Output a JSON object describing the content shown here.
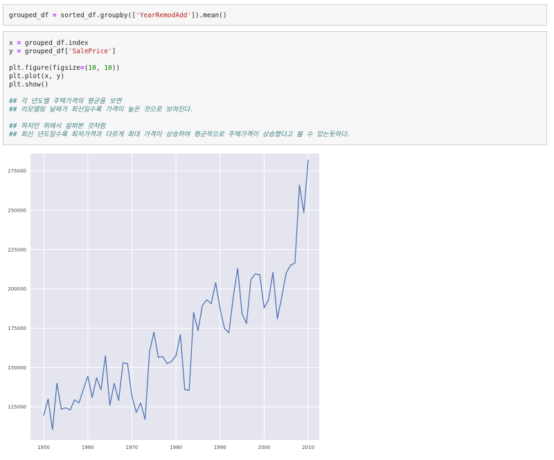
{
  "cell1": {
    "lines": [
      [
        {
          "t": "grouped_df ",
          "c": "plain"
        },
        {
          "t": "=",
          "c": "kw-eq"
        },
        {
          "t": " sorted_df.groupby([",
          "c": "plain"
        },
        {
          "t": "'YearRemodAdd'",
          "c": "str"
        },
        {
          "t": "]).mean()",
          "c": "plain"
        }
      ]
    ]
  },
  "cell2": {
    "lines": [
      [
        {
          "t": "x ",
          "c": "plain"
        },
        {
          "t": "=",
          "c": "kw-eq"
        },
        {
          "t": " grouped_df.index",
          "c": "plain"
        }
      ],
      [
        {
          "t": "y ",
          "c": "plain"
        },
        {
          "t": "=",
          "c": "kw-eq"
        },
        {
          "t": " grouped_df[",
          "c": "plain"
        },
        {
          "t": "'SalePrice'",
          "c": "str"
        },
        {
          "t": "]",
          "c": "plain"
        }
      ],
      [],
      [
        {
          "t": "plt.figure(figsize",
          "c": "plain"
        },
        {
          "t": "=",
          "c": "kw-eq"
        },
        {
          "t": "(",
          "c": "plain"
        },
        {
          "t": "10",
          "c": "num"
        },
        {
          "t": ", ",
          "c": "plain"
        },
        {
          "t": "10",
          "c": "num"
        },
        {
          "t": "))",
          "c": "plain"
        }
      ],
      [
        {
          "t": "plt.plot(x, y)",
          "c": "plain"
        }
      ],
      [
        {
          "t": "plt.show()",
          "c": "plain"
        }
      ],
      [],
      [
        {
          "t": "## 각 년도별 주택가격의 평균을 보면",
          "c": "cm"
        }
      ],
      [
        {
          "t": "## 리모델링 날짜가 최신일수록 가격이 높은 것으로 보여진다.",
          "c": "cm"
        }
      ],
      [],
      [
        {
          "t": "## 하지만 위에서 살펴본 것처럼",
          "c": "cm"
        }
      ],
      [
        {
          "t": "## 최신 년도일수록 최저가격과 다르게 최대 가격이 상승하여 평균적으로 주택가격이 상승했다고 볼 수 있는듯하다.",
          "c": "cm"
        }
      ]
    ]
  },
  "chart_data": {
    "type": "line",
    "title": "",
    "xlabel": "",
    "ylabel": "",
    "grid": true,
    "line_color": "#4c72b0",
    "background": "#e5e5ef",
    "xlim": [
      1947.0,
      2012.5
    ],
    "ylim": [
      104000,
      286000
    ],
    "xticks": [
      1950,
      1960,
      1970,
      1980,
      1990,
      2000,
      2010
    ],
    "yticks": [
      125000,
      150000,
      175000,
      200000,
      225000,
      250000,
      275000
    ],
    "x": [
      1950,
      1951,
      1952,
      1953,
      1954,
      1955,
      1956,
      1957,
      1958,
      1959,
      1960,
      1961,
      1962,
      1963,
      1964,
      1965,
      1966,
      1967,
      1968,
      1969,
      1970,
      1971,
      1972,
      1973,
      1974,
      1975,
      1976,
      1977,
      1978,
      1979,
      1980,
      1981,
      1982,
      1983,
      1984,
      1985,
      1986,
      1987,
      1988,
      1989,
      1990,
      1991,
      1992,
      1993,
      1994,
      1995,
      1996,
      1997,
      1998,
      1999,
      2000,
      2001,
      2002,
      2003,
      2004,
      2005,
      2006,
      2007,
      2008,
      2009,
      2010
    ],
    "y": [
      119500,
      130000,
      110500,
      140000,
      123500,
      124500,
      123000,
      129500,
      127500,
      136000,
      144500,
      131000,
      143500,
      136000,
      157500,
      126000,
      140000,
      129000,
      153000,
      152500,
      132000,
      121500,
      127500,
      117000,
      160000,
      172500,
      156500,
      157000,
      152500,
      154000,
      157500,
      171000,
      136000,
      135500,
      185000,
      173500,
      189500,
      193000,
      190500,
      204000,
      187500,
      175000,
      172000,
      195000,
      213000,
      184000,
      178000,
      206000,
      209500,
      209000,
      188000,
      193000,
      210500,
      181000,
      195000,
      210000,
      215000,
      216500,
      266000,
      248500,
      282000
    ]
  }
}
